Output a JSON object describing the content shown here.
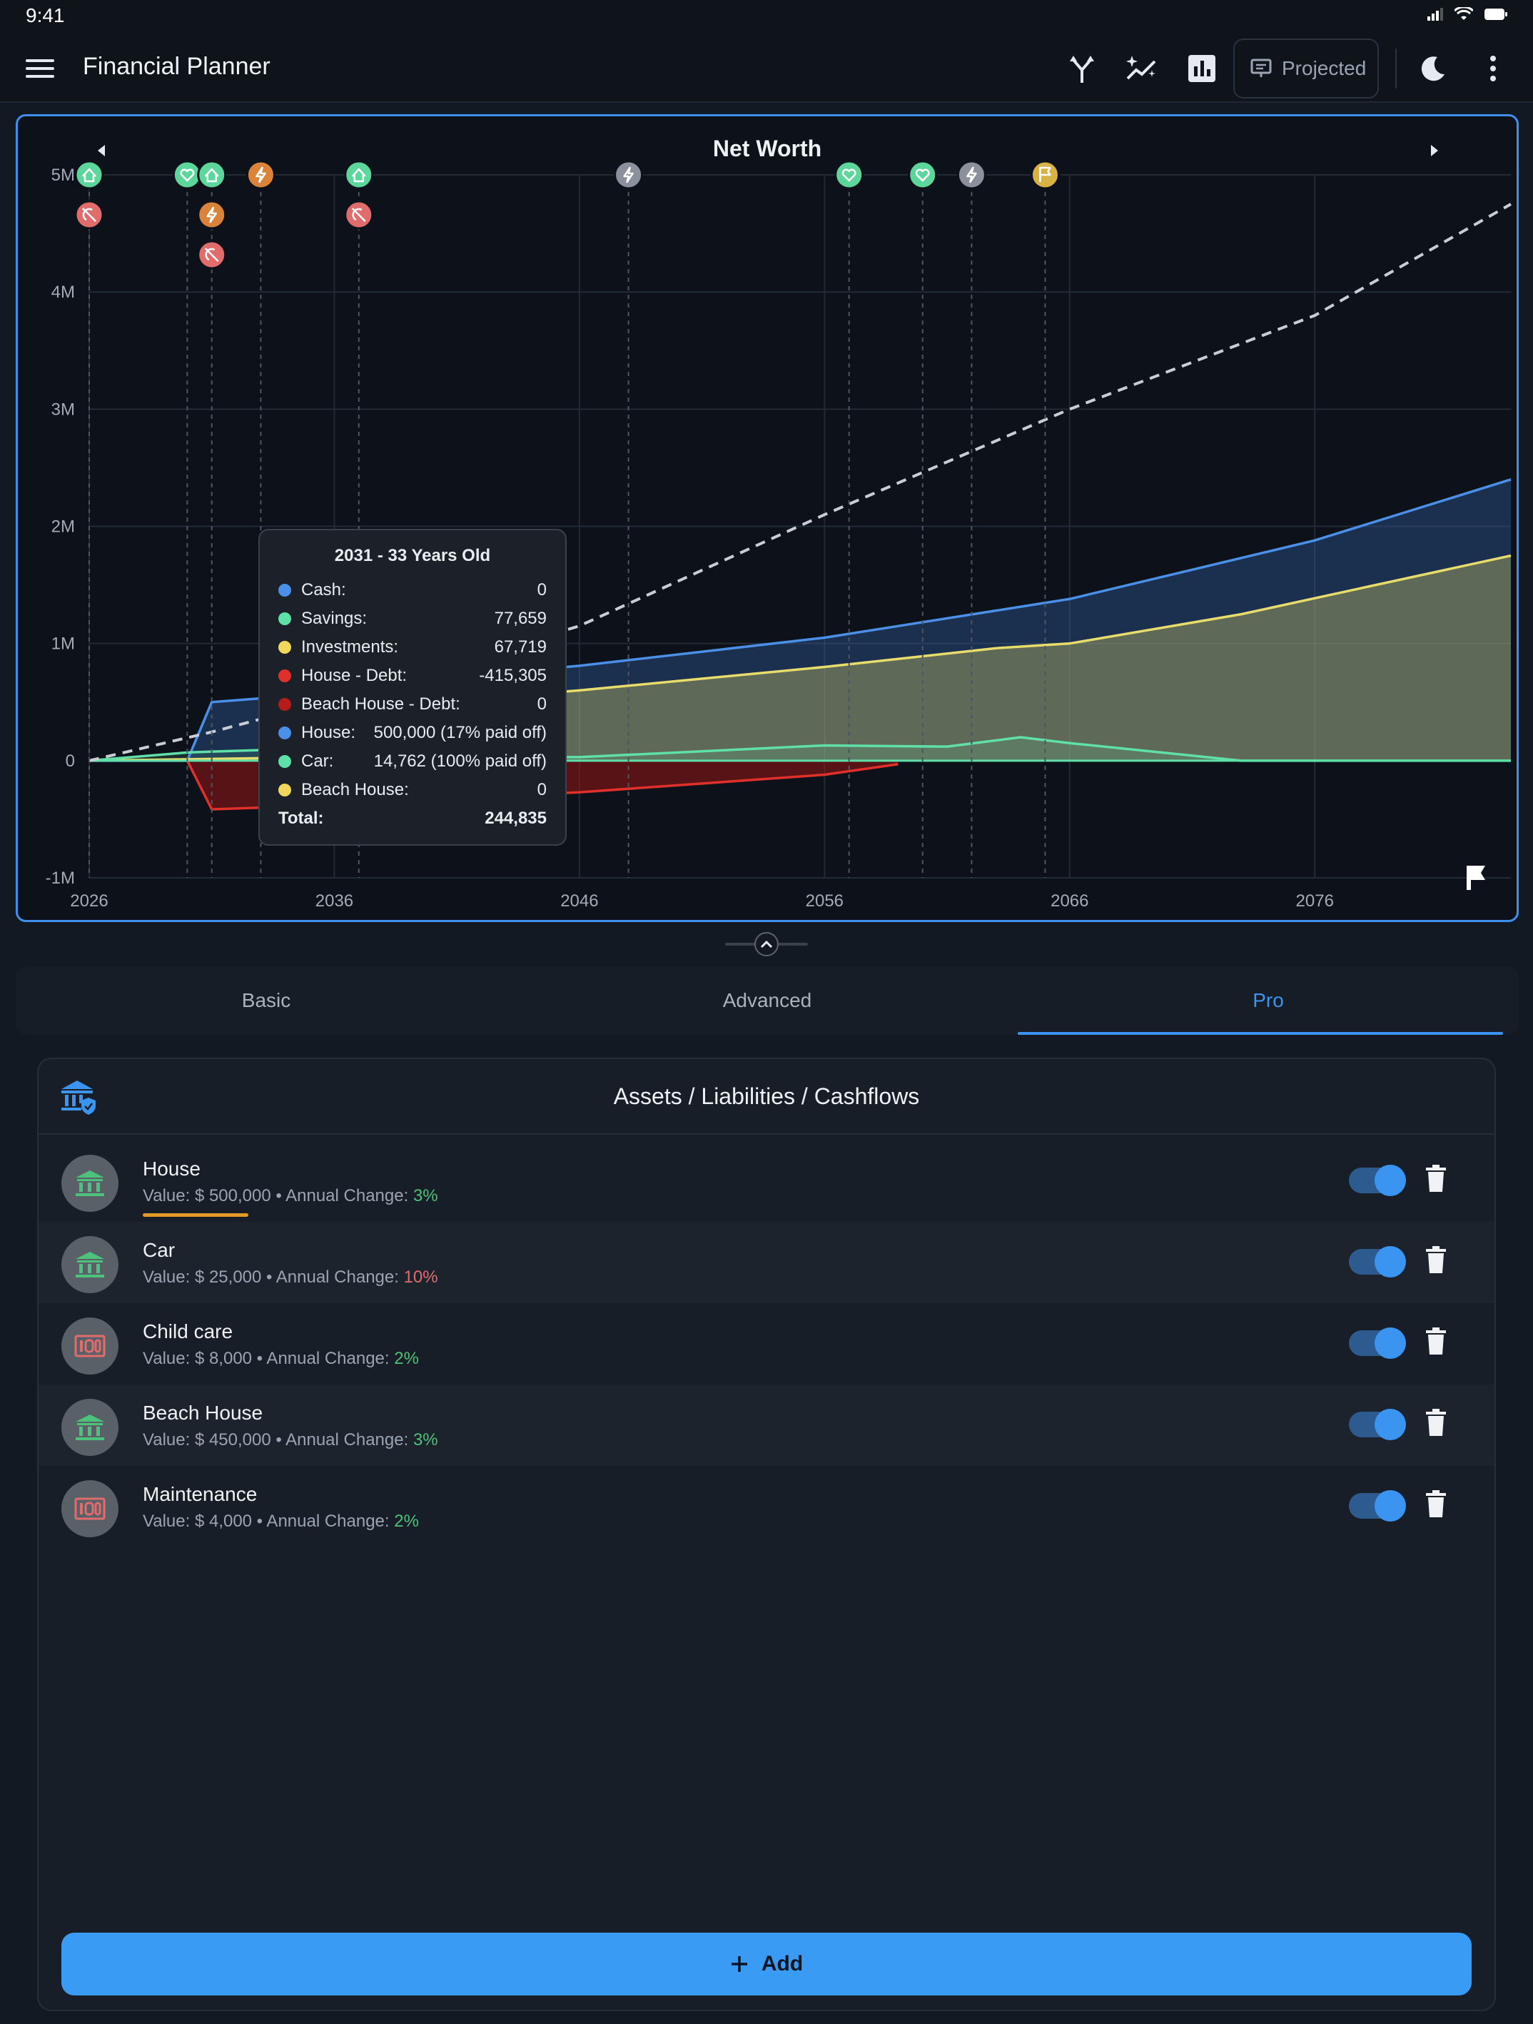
{
  "status_bar": {
    "time": "9:41"
  },
  "app_bar": {
    "title": "Financial Planner",
    "projected_label": "Projected"
  },
  "chart_data": {
    "type": "area",
    "title": "Net Worth",
    "x_ticks": [
      "2026",
      "2036",
      "2046",
      "2056",
      "2066",
      "2076"
    ],
    "y_ticks": [
      "5M",
      "4M",
      "3M",
      "2M",
      "1M",
      "0",
      "-1M"
    ],
    "xlim": [
      2026,
      2084
    ],
    "ylim": [
      -1000000,
      5000000
    ],
    "grid": true,
    "series": [
      {
        "name": "House",
        "color": "#4a8fe8",
        "x": [
          2026,
          2030,
          2031,
          2036,
          2040,
          2046,
          2056,
          2066,
          2076,
          2084
        ],
        "y": [
          0,
          0,
          500000,
          580000,
          700000,
          810000,
          1050000,
          1380000,
          1880000,
          2400000
        ]
      },
      {
        "name": "Investments",
        "color": "#e8dd6a",
        "x": [
          2026,
          2036,
          2037,
          2040,
          2046,
          2056,
          2063,
          2066,
          2073,
          2084
        ],
        "y": [
          0,
          30000,
          450000,
          500000,
          600000,
          800000,
          960000,
          1000000,
          1250000,
          1750000
        ]
      },
      {
        "name": "Savings",
        "color": "#5fe0a8",
        "x": [
          2026,
          2030,
          2031,
          2036,
          2037,
          2046,
          2056,
          2061,
          2064,
          2066,
          2073,
          2084
        ],
        "y": [
          0,
          70000,
          77659,
          110000,
          40000,
          30000,
          130000,
          120000,
          200000,
          150000,
          0,
          0
        ]
      },
      {
        "name": "House - Debt",
        "color": "#e0302b",
        "x": [
          2030,
          2031,
          2036,
          2037,
          2046,
          2056,
          2059
        ],
        "y": [
          0,
          -415305,
          -380000,
          -360000,
          -270000,
          -120000,
          -30000
        ]
      }
    ],
    "projection": {
      "name": "Total (projected)",
      "color": "#c9ced6",
      "x": [
        2026,
        2031,
        2036,
        2046,
        2056,
        2066,
        2076,
        2084
      ],
      "y": [
        0,
        244835,
        520000,
        1150000,
        2100000,
        3000000,
        3800000,
        4750000
      ]
    },
    "event_markers": [
      {
        "year": 2026,
        "icons": [
          "house-icon",
          "no-money-icon"
        ]
      },
      {
        "year": 2030,
        "icons": [
          "heart-icon"
        ]
      },
      {
        "year": 2031,
        "icons": [
          "house-icon",
          "lightning-icon",
          "no-money-icon"
        ]
      },
      {
        "year": 2033,
        "icons": [
          "lightning-icon"
        ]
      },
      {
        "year": 2037,
        "icons": [
          "house-icon",
          "no-money-icon"
        ]
      },
      {
        "year": 2048,
        "icons": [
          "lightning-icon"
        ]
      },
      {
        "year": 2057,
        "icons": [
          "heart-icon"
        ]
      },
      {
        "year": 2060,
        "icons": [
          "heart-icon"
        ]
      },
      {
        "year": 2062,
        "icons": [
          "lightning-icon"
        ]
      },
      {
        "year": 2065,
        "icons": [
          "flag-icon"
        ]
      }
    ],
    "tooltip": {
      "title": "2031 - 33 Years Old",
      "rows": [
        {
          "label": "Cash:",
          "value": "0",
          "color": "#4a8fe8"
        },
        {
          "label": "Savings:",
          "value": "77,659",
          "color": "#5fe0a8"
        },
        {
          "label": "Investments:",
          "value": "67,719",
          "color": "#f2d75a"
        },
        {
          "label": "House - Debt:",
          "value": "-415,305",
          "color": "#e0302b"
        },
        {
          "label": "Beach House - Debt:",
          "value": "0",
          "color": "#b71c1c"
        },
        {
          "label": "House:",
          "value": "500,000 (17% paid off)",
          "color": "#4a8fe8"
        },
        {
          "label": "Car:",
          "value": "14,762 (100% paid off)",
          "color": "#5fe0a8"
        },
        {
          "label": "Beach House:",
          "value": "0",
          "color": "#f2d75a"
        }
      ],
      "total_label": "Total:",
      "total_value": "244,835"
    }
  },
  "tabs": [
    {
      "label": "Basic",
      "active": false
    },
    {
      "label": "Advanced",
      "active": false
    },
    {
      "label": "Pro",
      "active": true
    }
  ],
  "panel": {
    "title": "Assets / Liabilities / Cashflows",
    "value_prefix": "Value: $ ",
    "change_label": " • Annual Change: ",
    "items": [
      {
        "name": "House",
        "value": "500,000",
        "change": "3%",
        "change_sign": "pos",
        "kind": "asset",
        "enabled": true
      },
      {
        "name": "Car",
        "value": "25,000",
        "change": "10%",
        "change_sign": "neg",
        "kind": "asset",
        "enabled": true
      },
      {
        "name": "Child care",
        "value": "8,000",
        "change": "2%",
        "change_sign": "pos",
        "kind": "cashflow",
        "enabled": true
      },
      {
        "name": "Beach House",
        "value": "450,000",
        "change": "3%",
        "change_sign": "pos",
        "kind": "asset",
        "enabled": true
      },
      {
        "name": "Maintenance",
        "value": "4,000",
        "change": "2%",
        "change_sign": "pos",
        "kind": "cashflow",
        "enabled": true
      }
    ],
    "add_label": "Add"
  }
}
